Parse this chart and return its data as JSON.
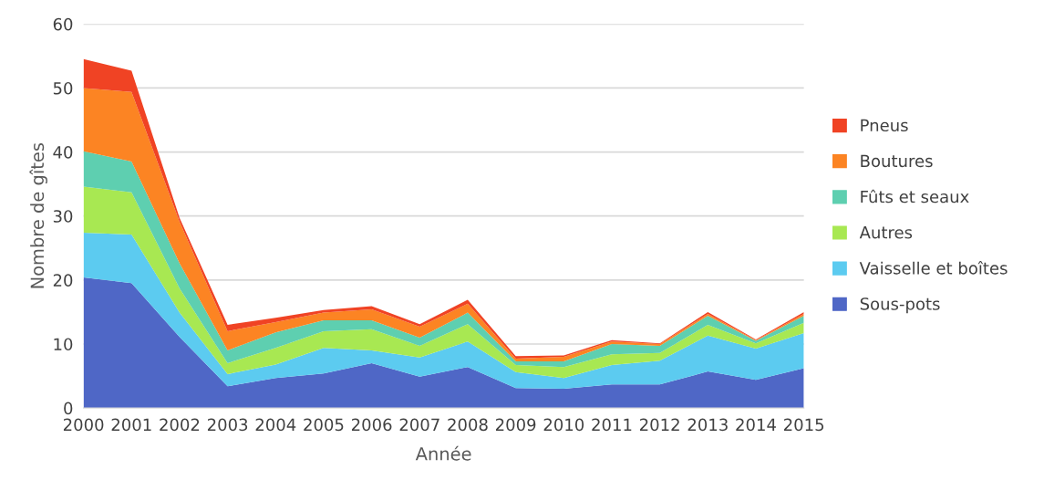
{
  "chart_data": {
    "type": "area",
    "stacked": true,
    "xlabel": "Année",
    "ylabel": "Nombre de gîtes",
    "categories": [
      "2000",
      "2001",
      "2002",
      "2003",
      "2004",
      "2005",
      "2006",
      "2007",
      "2008",
      "2009",
      "2010",
      "2011",
      "2012",
      "2013",
      "2014",
      "2015"
    ],
    "ylim": [
      0,
      60
    ],
    "yticks": [
      0,
      10,
      20,
      30,
      40,
      50,
      60
    ],
    "grid": "y",
    "legend": "right",
    "series": [
      {
        "name": "Sous-pots",
        "color": "#4f67c6",
        "values": [
          20.4,
          19.5,
          11.1,
          3.4,
          4.7,
          5.4,
          7.0,
          4.9,
          6.4,
          3.1,
          3.0,
          3.7,
          3.7,
          5.7,
          4.4,
          6.2
        ]
      },
      {
        "name": "Vaisselle et boîtes",
        "color": "#5ccbf0",
        "values": [
          7.0,
          7.6,
          3.8,
          1.9,
          2.1,
          4.0,
          2.0,
          3.0,
          4.0,
          2.5,
          1.7,
          3.0,
          3.7,
          5.6,
          4.9,
          5.5
        ]
      },
      {
        "name": "Autres",
        "color": "#a8e852",
        "values": [
          7.2,
          6.6,
          3.8,
          1.7,
          2.6,
          2.6,
          3.3,
          1.8,
          2.7,
          1.1,
          1.7,
          1.7,
          1.2,
          1.7,
          0.8,
          1.6
        ]
      },
      {
        "name": "Fûts et seaux",
        "color": "#5ecfb0",
        "values": [
          5.5,
          4.8,
          3.9,
          2.0,
          2.4,
          1.7,
          1.4,
          1.3,
          1.8,
          0.6,
          0.9,
          1.6,
          1.1,
          1.4,
          0.4,
          1.1
        ]
      },
      {
        "name": "Boutures",
        "color": "#fc8423",
        "values": [
          9.9,
          10.9,
          6.5,
          3.0,
          1.6,
          1.2,
          1.7,
          1.7,
          1.4,
          0.4,
          0.7,
          0.4,
          0.3,
          0.3,
          0.1,
          0.3
        ]
      },
      {
        "name": "Pneus",
        "color": "#f04324",
        "values": [
          4.5,
          3.3,
          0.6,
          1.0,
          0.7,
          0.4,
          0.5,
          0.4,
          0.6,
          0.4,
          0.2,
          0.2,
          0.1,
          0.3,
          0.1,
          0.3
        ]
      }
    ]
  }
}
